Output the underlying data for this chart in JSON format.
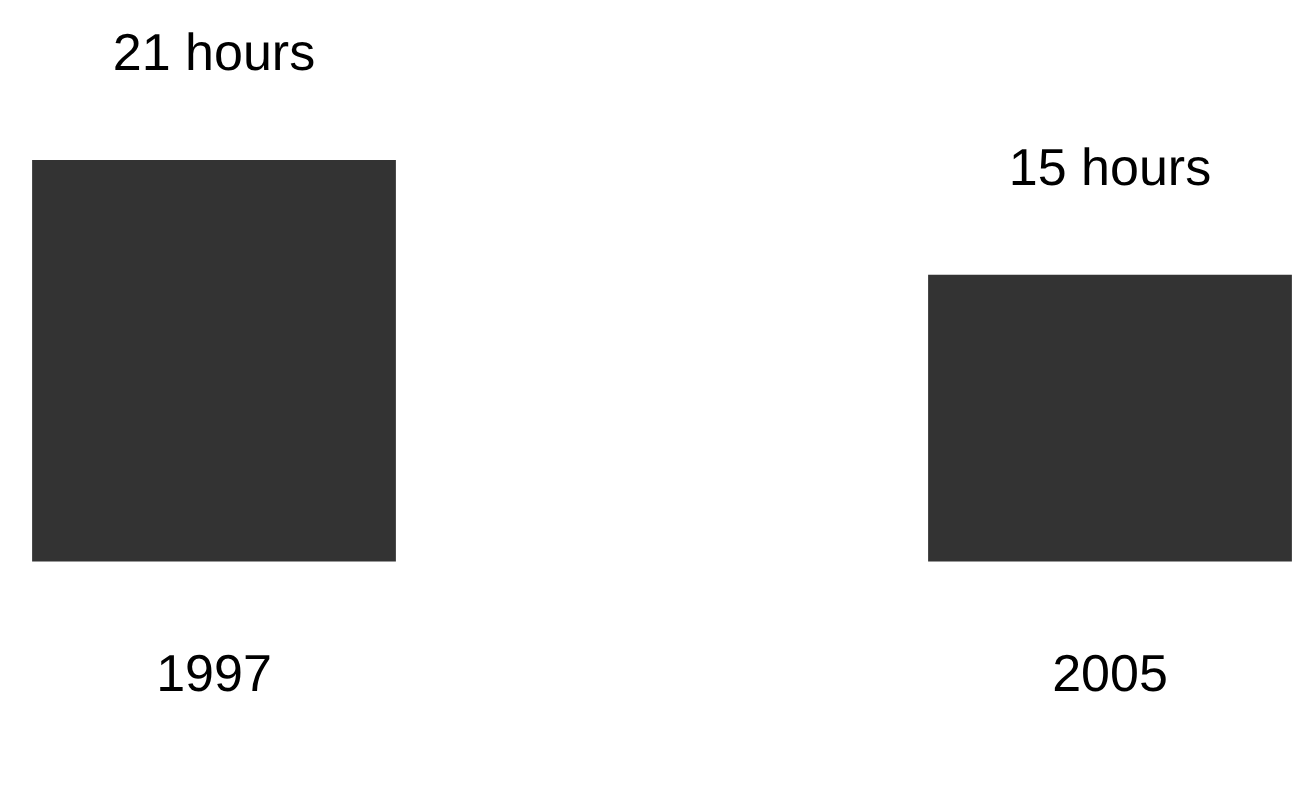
{
  "chart_data": {
    "type": "bar",
    "categories": [
      "1997",
      "2005"
    ],
    "values": [
      21,
      15
    ],
    "value_labels": [
      "21 hours",
      "15 hours"
    ],
    "color": "#333333",
    "grid": false,
    "legend": false,
    "tick_labels": "x"
  }
}
